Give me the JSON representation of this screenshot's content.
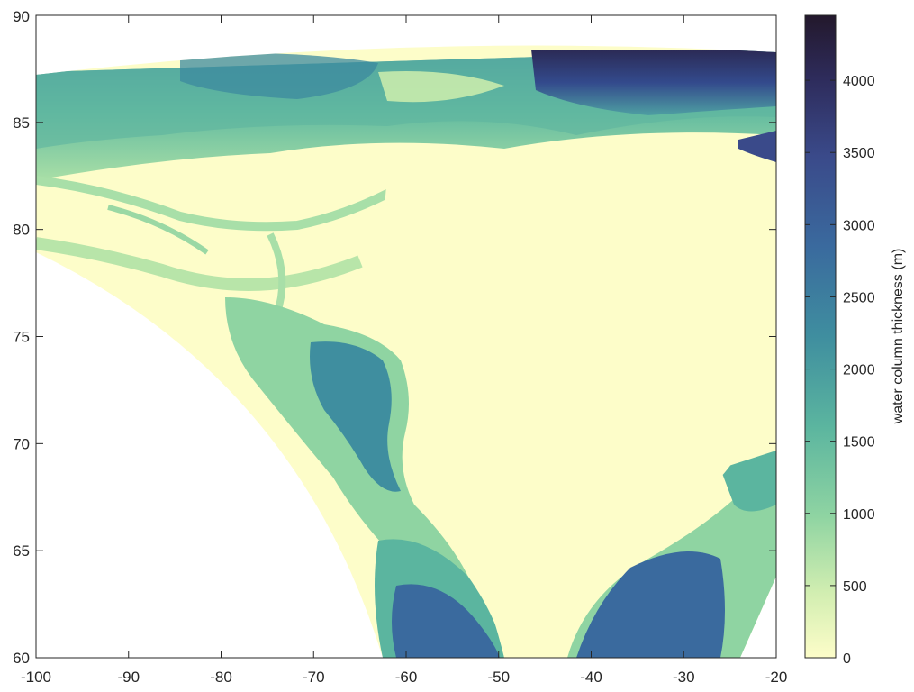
{
  "map": {
    "x_ticks": [
      "-100",
      "-90",
      "-80",
      "-70",
      "-60",
      "-50",
      "-40",
      "-30",
      "-20"
    ],
    "y_ticks": [
      "60",
      "65",
      "70",
      "75",
      "80",
      "85",
      "90"
    ],
    "xlim": [
      -100,
      -20
    ],
    "ylim": [
      60,
      90
    ],
    "colormap": [
      "#fdfdc9",
      "#d2eeb1",
      "#8fd4a2",
      "#5bb59f",
      "#3f8e9f",
      "#3a6a9e",
      "#3a4a8a",
      "#2e2c5c",
      "#23182c"
    ],
    "land_color": "#fdfdc9"
  },
  "colorbar": {
    "label": "water column thickness (m)",
    "tick_labels": [
      "0",
      "500",
      "1000",
      "1500",
      "2000",
      "2500",
      "3000",
      "3500",
      "4000"
    ],
    "range": [
      0,
      4450
    ]
  }
}
